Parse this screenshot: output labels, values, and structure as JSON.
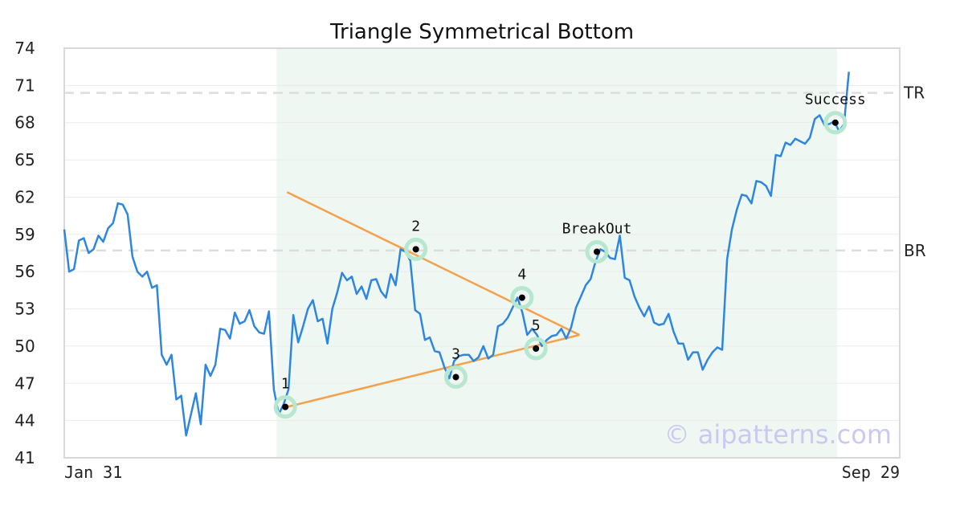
{
  "chart_data": {
    "type": "line",
    "title": "Triangle Symmetrical Bottom",
    "xlabel": "",
    "ylabel": "",
    "ylim": [
      41,
      74
    ],
    "y_ticks": [
      41,
      44,
      47,
      50,
      53,
      56,
      59,
      62,
      65,
      68,
      71,
      74
    ],
    "x_tick_labels": [
      "Jan 31",
      "Sep 29"
    ],
    "grid": "horizontal",
    "colors": {
      "price": "#2e86de",
      "trendline": "#f5a04a",
      "pattern_band": "#eef7f2",
      "marker_halo": "#b6e7cf",
      "ref_line": "#dddddd",
      "watermark": "#c9c9f3"
    },
    "x_range": [
      0,
      240
    ],
    "pattern_band": {
      "x_start": 61,
      "x_end": 222
    },
    "series": [
      {
        "values": [
          59.4,
          56,
          56.2,
          58.5,
          58.7,
          57.5,
          57.8,
          58.9,
          58.4,
          59.5,
          59.9,
          61.5,
          61.4,
          60.6,
          57.2,
          56,
          55.6,
          56,
          54.7,
          54.9,
          49.3,
          48.5,
          49.3,
          45.7,
          46,
          42.8,
          44.5,
          46.2,
          43.7,
          48.5,
          47.6,
          48.5,
          51.4,
          51.3,
          50.6,
          52.7,
          51.8,
          52,
          52.9,
          51.6,
          51.1,
          51,
          52.8,
          46.5,
          44.5,
          45.3,
          46.5,
          52.5,
          50.3,
          51.6,
          53,
          53.7,
          52.0,
          52.2,
          50.2,
          53.0,
          54.3,
          55.9,
          55.3,
          55.6,
          54.2,
          54.8,
          53.8,
          55.3,
          55.4,
          54.4,
          53.9,
          55.8,
          54.9,
          57.8,
          57.6,
          56.9,
          52.9,
          52.6,
          50.5,
          50.7,
          49.6,
          49.5,
          48.3,
          47.4,
          48.8,
          49.2,
          49.3,
          49.3,
          48.8,
          49.1,
          50.0,
          49.0,
          49.3,
          51.6,
          51.8,
          52.3,
          53.1,
          53.9,
          52.7,
          50.9,
          51.4,
          50.9,
          50.0,
          50.5,
          50.8,
          50.9,
          51.4,
          50.6,
          51.5,
          53.1,
          54.0,
          54.9,
          55.4,
          56.8,
          57.8,
          57.6,
          57.1,
          57.0,
          58.9,
          55.5,
          55.3,
          54.0,
          53.1,
          52.4,
          53.2,
          51.9,
          51.7,
          51.8,
          52.6,
          51.2,
          50.2,
          50.2,
          48.9,
          49.5,
          49.5,
          48.1,
          48.9,
          49.5,
          49.9,
          49.7,
          57.0,
          59.4,
          61.0,
          62.2,
          62.1,
          61.5,
          63.3,
          63.2,
          62.9,
          62.1,
          65.4,
          65.3,
          66.4,
          66.2,
          66.7,
          66.5,
          66.3,
          66.8,
          68.3,
          68.6,
          67.8,
          67.9,
          68.1,
          67.3,
          67.9,
          72.1
        ],
        "x_step": 1.4
      }
    ],
    "trendlines": [
      {
        "name": "upper",
        "from": [
          64,
          62.4
        ],
        "to": [
          148,
          50.9
        ]
      },
      {
        "name": "lower",
        "from": [
          64,
          45.1
        ],
        "to": [
          148,
          50.9
        ]
      }
    ],
    "reference_lines": [
      {
        "label": "TR",
        "y": 70.4
      },
      {
        "label": "BR",
        "y": 57.7
      }
    ],
    "points": [
      {
        "label": "1",
        "x": 63.5,
        "y": 45.1
      },
      {
        "label": "2",
        "x": 101,
        "y": 57.8
      },
      {
        "label": "3",
        "x": 112.5,
        "y": 47.5
      },
      {
        "label": "4",
        "x": 131.5,
        "y": 53.9
      },
      {
        "label": "5",
        "x": 135.5,
        "y": 49.8
      },
      {
        "label": "BreakOut",
        "x": 153,
        "y": 57.6
      },
      {
        "label": "Success",
        "x": 221.5,
        "y": 68.0
      }
    ],
    "watermark": "© aipatterns.com"
  }
}
